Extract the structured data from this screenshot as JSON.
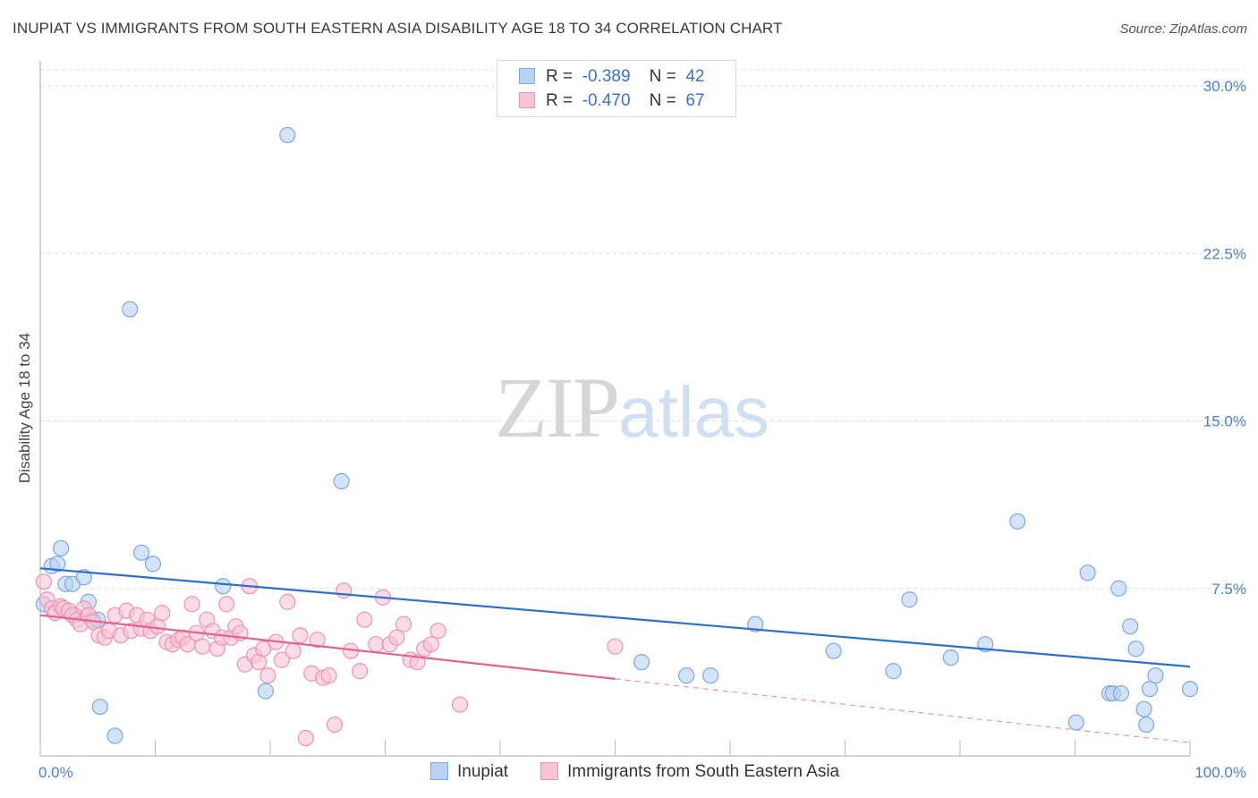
{
  "title": "INUPIAT VS IMMIGRANTS FROM SOUTH EASTERN ASIA DISABILITY AGE 18 TO 34 CORRELATION CHART",
  "source": "Source: ZipAtlas.com",
  "watermark": {
    "zip": "ZIP",
    "atlas": "atlas"
  },
  "colors": {
    "blue_fill": "#b8d2f3",
    "blue_stroke": "#7ea8e0",
    "blue_line": "#2f6fcc",
    "pink_fill": "#f8c3d4",
    "pink_stroke": "#ec93b2",
    "pink_line": "#e0648f",
    "grid": "#dddddd",
    "tick_text": "#4a7fd0"
  },
  "legend": {
    "rows": [
      {
        "r_label": "R =",
        "r_value": "-0.389",
        "n_label": "N =",
        "n_value": "42"
      },
      {
        "r_label": "R =",
        "r_value": "-0.470",
        "n_label": "N =",
        "n_value": "67"
      }
    ]
  },
  "chart_data": {
    "type": "scatter",
    "title": "INUPIAT VS IMMIGRANTS FROM SOUTH EASTERN ASIA DISABILITY AGE 18 TO 34 CORRELATION CHART",
    "xlabel": "",
    "ylabel": "Disability Age 18 to 34",
    "xlim": [
      0,
      100
    ],
    "ylim": [
      0,
      30
    ],
    "x_tick_labels": [
      {
        "value": 0,
        "label": "0.0%"
      },
      {
        "value": 100,
        "label": "100.0%"
      }
    ],
    "y_tick_labels": [
      {
        "value": 7.5,
        "label": "7.5%"
      },
      {
        "value": 15,
        "label": "15.0%"
      },
      {
        "value": 22.5,
        "label": "22.5%"
      },
      {
        "value": 30,
        "label": "30.0%"
      }
    ],
    "y_grid": [
      7.5,
      15,
      22.5,
      30
    ],
    "legend_position": "bottom",
    "series": [
      {
        "name": "Inupiat",
        "color": "blue",
        "trend": {
          "x0": 0,
          "y0": 8.4,
          "x1": 100,
          "y1": 4.0,
          "solid_until": 100
        },
        "points": [
          [
            0.3,
            6.8
          ],
          [
            1.0,
            8.5
          ],
          [
            1.5,
            8.6
          ],
          [
            1.8,
            9.3
          ],
          [
            2.2,
            7.7
          ],
          [
            2.8,
            7.7
          ],
          [
            3.0,
            6.3
          ],
          [
            3.8,
            8.0
          ],
          [
            4.2,
            6.9
          ],
          [
            4.5,
            6.1
          ],
          [
            5.0,
            6.1
          ],
          [
            5.2,
            2.2
          ],
          [
            6.5,
            0.9
          ],
          [
            7.8,
            20.0
          ],
          [
            8.8,
            9.1
          ],
          [
            9.8,
            8.6
          ],
          [
            15.9,
            7.6
          ],
          [
            19.6,
            2.9
          ],
          [
            21.5,
            27.8
          ],
          [
            26.2,
            12.3
          ],
          [
            52.3,
            4.2
          ],
          [
            56.2,
            3.6
          ],
          [
            58.3,
            3.6
          ],
          [
            62.2,
            5.9
          ],
          [
            69.0,
            4.7
          ],
          [
            74.2,
            3.8
          ],
          [
            75.6,
            7.0
          ],
          [
            79.2,
            4.4
          ],
          [
            82.2,
            5.0
          ],
          [
            85.0,
            10.5
          ],
          [
            90.1,
            1.5
          ],
          [
            91.1,
            8.2
          ],
          [
            93.0,
            2.8
          ],
          [
            93.3,
            2.8
          ],
          [
            93.8,
            7.5
          ],
          [
            94.0,
            2.8
          ],
          [
            94.8,
            5.8
          ],
          [
            95.3,
            4.8
          ],
          [
            96.0,
            2.1
          ],
          [
            96.2,
            1.4
          ],
          [
            96.5,
            3.0
          ],
          [
            97.0,
            3.6
          ],
          [
            100.0,
            3.0
          ]
        ]
      },
      {
        "name": "Immigrants from South Eastern Asia",
        "color": "pink",
        "trend": {
          "x0": 0,
          "y0": 6.3,
          "x1": 100,
          "y1": 0.6,
          "solid_until": 50
        },
        "points": [
          [
            0.3,
            7.8
          ],
          [
            0.6,
            7.0
          ],
          [
            1.0,
            6.6
          ],
          [
            1.3,
            6.4
          ],
          [
            1.8,
            6.7
          ],
          [
            2.0,
            6.6
          ],
          [
            2.5,
            6.5
          ],
          [
            2.8,
            6.3
          ],
          [
            3.2,
            6.1
          ],
          [
            3.5,
            5.9
          ],
          [
            3.8,
            6.6
          ],
          [
            4.2,
            6.3
          ],
          [
            4.6,
            6.0
          ],
          [
            5.1,
            5.4
          ],
          [
            5.6,
            5.3
          ],
          [
            6.0,
            5.6
          ],
          [
            6.5,
            6.3
          ],
          [
            7.0,
            5.4
          ],
          [
            7.5,
            6.5
          ],
          [
            7.9,
            5.6
          ],
          [
            8.4,
            6.3
          ],
          [
            8.8,
            5.7
          ],
          [
            9.3,
            6.1
          ],
          [
            9.6,
            5.6
          ],
          [
            10.2,
            5.8
          ],
          [
            10.6,
            6.4
          ],
          [
            11.0,
            5.1
          ],
          [
            11.5,
            5.0
          ],
          [
            12.0,
            5.2
          ],
          [
            12.4,
            5.3
          ],
          [
            12.8,
            5.0
          ],
          [
            13.2,
            6.8
          ],
          [
            13.6,
            5.5
          ],
          [
            14.1,
            4.9
          ],
          [
            14.5,
            6.1
          ],
          [
            15.0,
            5.6
          ],
          [
            15.4,
            4.8
          ],
          [
            15.8,
            5.3
          ],
          [
            16.2,
            6.8
          ],
          [
            16.6,
            5.3
          ],
          [
            17.0,
            5.8
          ],
          [
            17.4,
            5.5
          ],
          [
            17.8,
            4.1
          ],
          [
            18.2,
            7.6
          ],
          [
            18.6,
            4.5
          ],
          [
            19.0,
            4.2
          ],
          [
            19.4,
            4.8
          ],
          [
            19.8,
            3.6
          ],
          [
            20.5,
            5.1
          ],
          [
            21.0,
            4.3
          ],
          [
            21.5,
            6.9
          ],
          [
            22.0,
            4.7
          ],
          [
            22.6,
            5.4
          ],
          [
            23.1,
            0.8
          ],
          [
            23.6,
            3.7
          ],
          [
            24.1,
            5.2
          ],
          [
            24.6,
            3.5
          ],
          [
            25.1,
            3.6
          ],
          [
            25.6,
            1.4
          ],
          [
            26.4,
            7.4
          ],
          [
            27.0,
            4.7
          ],
          [
            27.8,
            3.8
          ],
          [
            28.2,
            6.1
          ],
          [
            29.2,
            5.0
          ],
          [
            29.8,
            7.1
          ],
          [
            30.4,
            5.0
          ],
          [
            31.0,
            5.3
          ],
          [
            31.6,
            5.9
          ],
          [
            32.2,
            4.3
          ],
          [
            32.8,
            4.2
          ],
          [
            33.4,
            4.8
          ],
          [
            34.0,
            5.0
          ],
          [
            34.6,
            5.6
          ],
          [
            36.5,
            2.3
          ],
          [
            50.0,
            4.9
          ]
        ]
      }
    ]
  }
}
